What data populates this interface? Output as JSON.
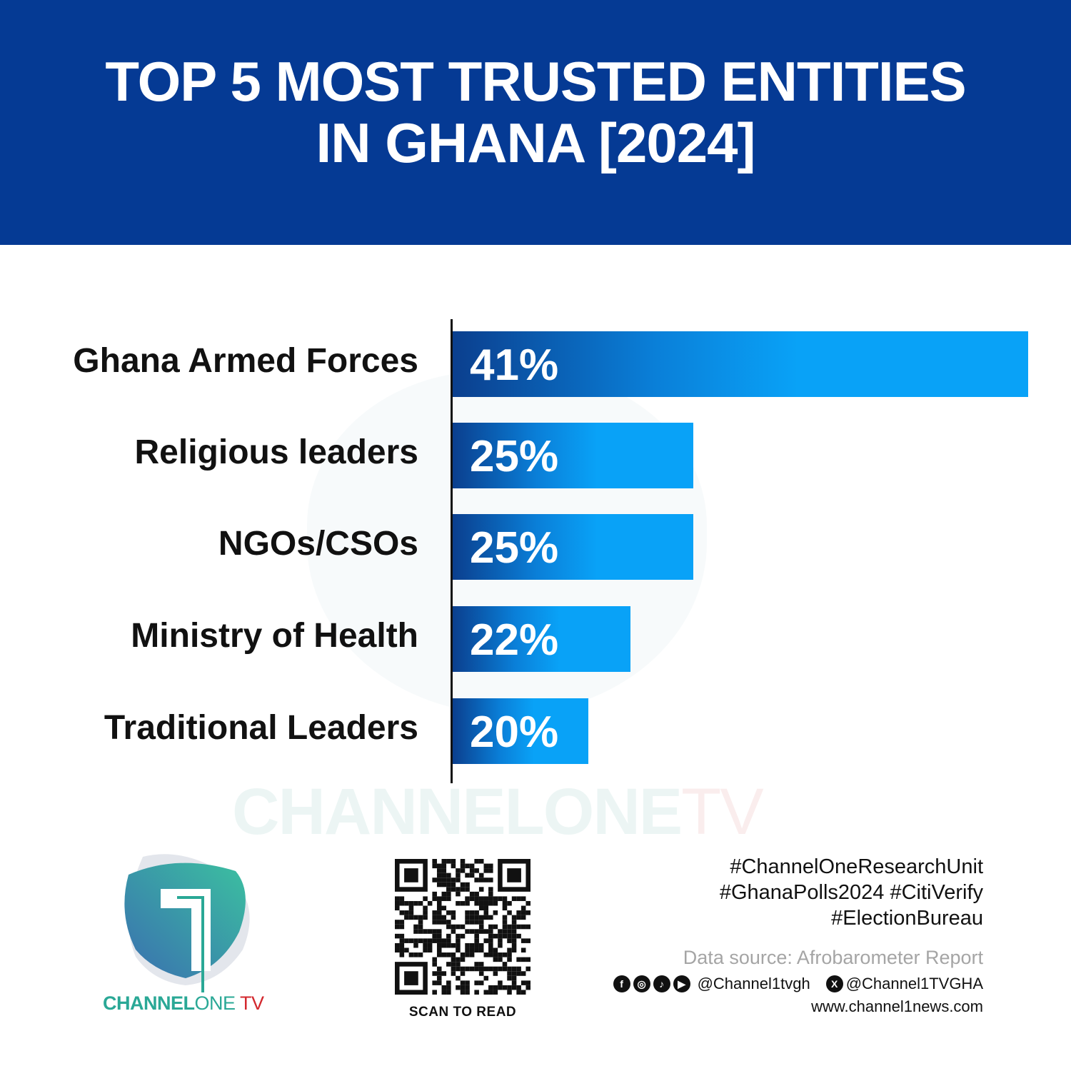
{
  "title_lines": [
    "TOP 5 MOST TRUSTED ENTITIES",
    "IN GHANA [2024]"
  ],
  "chart_data": {
    "type": "bar",
    "orientation": "horizontal",
    "title": "TOP 5 MOST TRUSTED ENTITIES IN GHANA [2024]",
    "categories": [
      "Ghana Armed Forces",
      "Religious leaders",
      "NGOs/CSOs",
      "Ministry of Health",
      "Traditional Leaders"
    ],
    "values": [
      41,
      25,
      25,
      22,
      20
    ],
    "value_labels": [
      "41%",
      "25%",
      "25%",
      "22%",
      "20%"
    ],
    "unit": "%",
    "grid": false,
    "colors": {
      "bar_start": "#0b3f8e",
      "bar_end": "#09a2f7",
      "banner": "#053a94"
    }
  },
  "watermark": {
    "main": "CHANNELONE",
    "tv": "TV"
  },
  "logo": {
    "part1": "CHANNEL",
    "part2": "ONE",
    "part3": " TV"
  },
  "qr": {
    "caption": "SCAN TO READ"
  },
  "footer": {
    "hashtags": [
      "#ChannelOneResearchUnit",
      "#GhanaPolls2024 #CitiVerify",
      "#ElectionBureau"
    ],
    "source": "Data source: Afrobarometer Report",
    "social_icons": [
      "facebook-icon",
      "instagram-icon",
      "tiktok-icon",
      "youtube-icon",
      "x-icon"
    ],
    "handle_1": "@Channel1tvgh",
    "handle_2": "@Channel1TVGHA",
    "website": "www.channel1news.com"
  }
}
